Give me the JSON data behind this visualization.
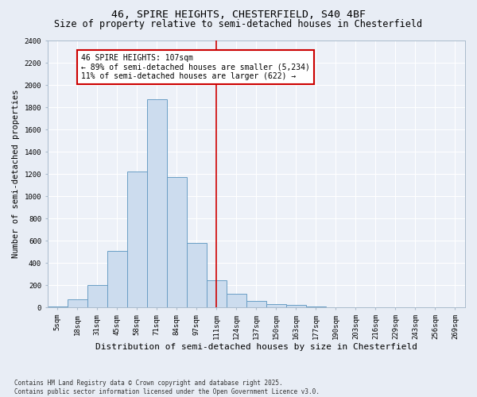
{
  "title1": "46, SPIRE HEIGHTS, CHESTERFIELD, S40 4BF",
  "title2": "Size of property relative to semi-detached houses in Chesterfield",
  "xlabel": "Distribution of semi-detached houses by size in Chesterfield",
  "ylabel": "Number of semi-detached properties",
  "footnote": "Contains HM Land Registry data © Crown copyright and database right 2025.\nContains public sector information licensed under the Open Government Licence v3.0.",
  "categories": [
    "5sqm",
    "18sqm",
    "31sqm",
    "45sqm",
    "58sqm",
    "71sqm",
    "84sqm",
    "97sqm",
    "111sqm",
    "124sqm",
    "137sqm",
    "150sqm",
    "163sqm",
    "177sqm",
    "190sqm",
    "203sqm",
    "216sqm",
    "229sqm",
    "243sqm",
    "256sqm",
    "269sqm"
  ],
  "values": [
    10,
    70,
    200,
    510,
    1220,
    1870,
    1170,
    580,
    240,
    120,
    55,
    30,
    20,
    8,
    2,
    1,
    0,
    0,
    0,
    0,
    0
  ],
  "bar_color": "#ccdcee",
  "bar_edge_color": "#6a9ec5",
  "vline_x": 8.0,
  "vline_color": "#cc0000",
  "annotation_line1": "46 SPIRE HEIGHTS: 107sqm",
  "annotation_line2": "← 89% of semi-detached houses are smaller (5,234)",
  "annotation_line3": "11% of semi-detached houses are larger (622) →",
  "annotation_box_color": "#cc0000",
  "ylim": [
    0,
    2400
  ],
  "yticks": [
    0,
    200,
    400,
    600,
    800,
    1000,
    1200,
    1400,
    1600,
    1800,
    2000,
    2200,
    2400
  ],
  "bg_color": "#e8edf5",
  "plot_bg_color": "#edf1f8",
  "grid_color": "#ffffff",
  "title1_fontsize": 9.5,
  "title2_fontsize": 8.5,
  "xlabel_fontsize": 8,
  "ylabel_fontsize": 7.5,
  "tick_fontsize": 6.5,
  "annot_fontsize": 7,
  "footnote_fontsize": 5.5
}
